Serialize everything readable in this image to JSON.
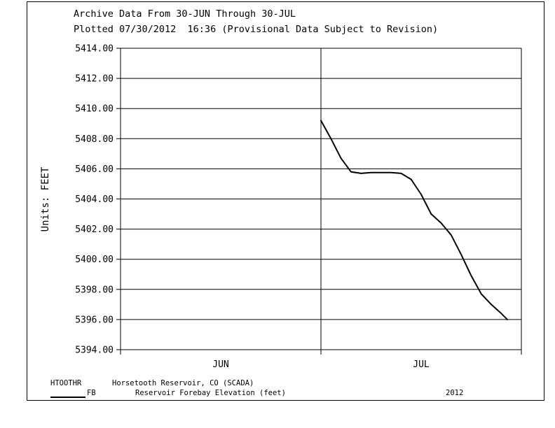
{
  "header": {
    "line1": "Archive Data From 30-JUN Through 30-JUL",
    "line2": "Plotted 07/30/2012  16:36 (Provisional Data Subject to Revision)"
  },
  "chart_data": {
    "type": "line",
    "ylabel": "Units:  FEET",
    "ylim": [
      5394,
      5414
    ],
    "yticks": [
      "5394.00",
      "5396.00",
      "5398.00",
      "5400.00",
      "5402.00",
      "5404.00",
      "5406.00",
      "5408.00",
      "5410.00",
      "5412.00",
      "5414.00"
    ],
    "xlim": [
      0,
      2
    ],
    "x_categories": [
      "JUN",
      "JUL"
    ],
    "grid": true,
    "series": [
      {
        "name": "FB",
        "color": "#000000",
        "x": [
          1.0,
          1.05,
          1.1,
          1.15,
          1.2,
          1.25,
          1.3,
          1.35,
          1.4,
          1.45,
          1.5,
          1.55,
          1.6,
          1.65,
          1.7,
          1.75,
          1.8,
          1.85,
          1.9,
          1.93
        ],
        "y": [
          5409.2,
          5408.0,
          5406.7,
          5405.8,
          5405.7,
          5405.75,
          5405.75,
          5405.75,
          5405.7,
          5405.3,
          5404.3,
          5403.0,
          5402.4,
          5401.6,
          5400.3,
          5398.9,
          5397.7,
          5397.0,
          5396.4,
          5396.0
        ]
      }
    ]
  },
  "footer": {
    "station_id": "HTOOTHR",
    "station_name": "Horsetooth Reservoir, CO (SCADA)",
    "series_code": "FB",
    "series_desc": "Reservoir Forebay Elevation (feet)",
    "year": "2012"
  }
}
